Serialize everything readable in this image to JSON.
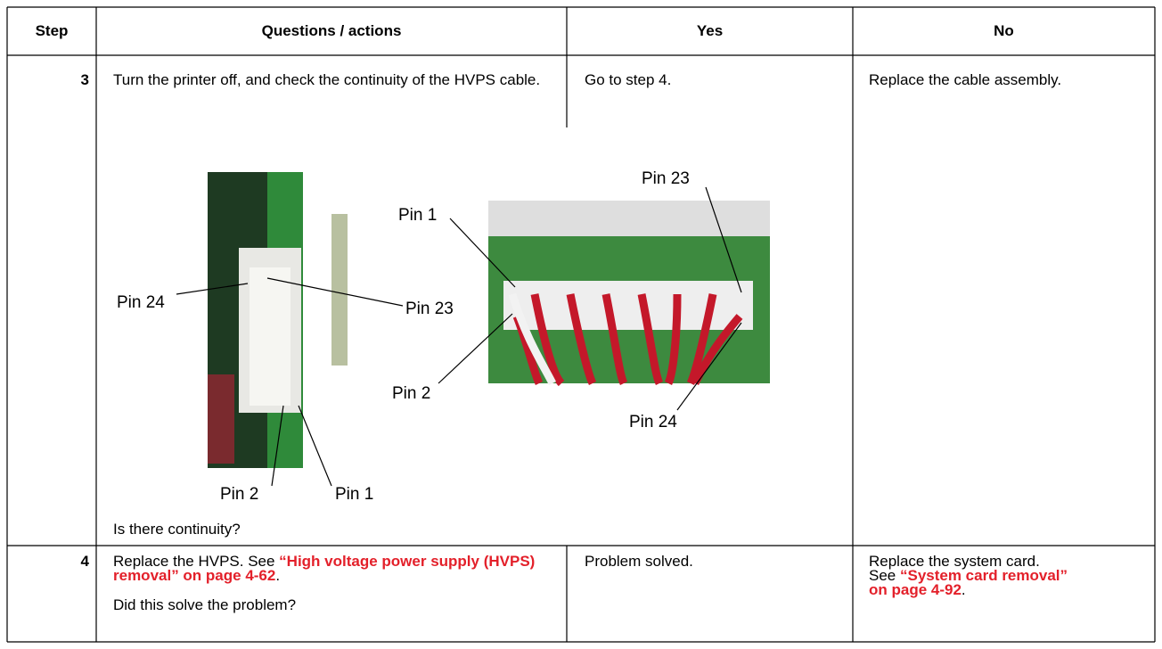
{
  "table": {
    "header": [
      "Step",
      "Questions / actions",
      "Yes",
      "No"
    ],
    "rows": [
      {
        "step": "3",
        "question": "Turn the printer off, and check the continuity of the HVPS cable.",
        "yes": "Go to step 4.",
        "no": "Replace the cable assembly.",
        "figure": {
          "left_labels": [
            "Pin 24",
            "Pin 23",
            "Pin 2",
            "Pin 1"
          ],
          "right_labels": [
            "Pin 1",
            "Pin 23",
            "Pin 2",
            "Pin 24"
          ]
        },
        "prompt": "Is there continuity?"
      },
      {
        "step": "4",
        "question_parts": [
          "Replace the HVPS. See ",
          "“High voltage power supply (HVPS) removal” on page 4-62",
          "."
        ],
        "prompt": "Did this solve the problem?",
        "yes": "Problem solved.",
        "no_parts": [
          "Replace the system card. See ",
          "“System card removal” on page 4-92",
          "."
        ]
      }
    ]
  }
}
